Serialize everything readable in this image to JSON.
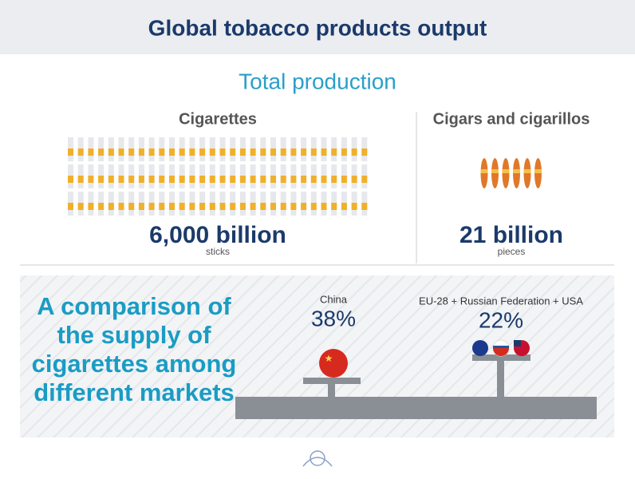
{
  "header": {
    "title": "Global tobacco products output"
  },
  "section_title": "Total production",
  "cigarettes": {
    "label": "Cigarettes",
    "amount": "6,000 billion",
    "unit": "sticks"
  },
  "cigars": {
    "label": "Cigars and cigarillos",
    "amount": "21 billion",
    "unit": "pieces"
  },
  "comparison": {
    "title": "A comparison of the supply of cigarettes among different markets",
    "markets": [
      {
        "name": "China",
        "share": "38%"
      },
      {
        "name": "EU-28 + Russian Federation + USA",
        "share": "22%"
      }
    ]
  }
}
